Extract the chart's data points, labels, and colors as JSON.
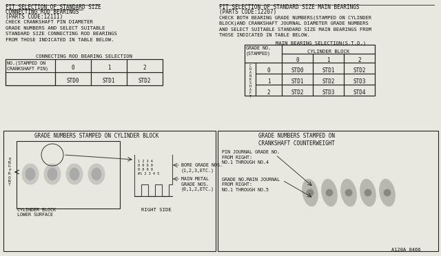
{
  "bg_color": "#e8e8e0",
  "title_left_line1": "FIT SELECTION OF STANDARD SIZE",
  "title_left_line2": "CONNECTING ROD BEARINGS",
  "title_left_line3": "(PARTS CODE:12111)",
  "desc_left": "CHECK CRANKSHAFT PIN DIAMETER\nGRADE NUMBERS AND SELECT SUITABLE\nSTANDARD SIZE CONNECTING ROD BEARINGS\nFROM THOSE INDICATED IN TABLE BELOW.",
  "table1_title": "CONNECTING ROD BEARING SELECTION",
  "table1_col_headers": [
    "0",
    "1",
    "2"
  ],
  "table1_values": [
    "STD0",
    "STD1",
    "STD2"
  ],
  "title_right_line1": "FIT SELECTION OF STANDARD SIZE MAIN BEARINGS",
  "title_right_line2": "(PARTS CODE:12207)",
  "desc_right": "CHECK BOTH BEARING GRADE NUMBERS(STAMPED ON CYLINDER\nBLOCK)AND CRANKSHAFT JOURNAL DIAMETER GRADE NUMBERS\nAND SELECT SUITABLE STANDARD SIZE MAIN BEARINGS FROM\nTHOSE INDICATED IN TABLE BELOW.",
  "table2_title": "MAIN BEARING SELECTION(S.T.D.)",
  "table2_col_headers": [
    "0",
    "1",
    "2"
  ],
  "table2_row_headers": [
    "0",
    "1",
    "2"
  ],
  "table2_values": [
    [
      "STD0",
      "STD1",
      "STD2"
    ],
    [
      "STD1",
      "STD2",
      "STD3"
    ],
    [
      "STD2",
      "STD3",
      "STD4"
    ]
  ],
  "bottom_left_title": "GRADE NUMBERS STAMPED ON CYLINDER BLOCK",
  "bottom_right_title": "GRADE NUMBERS STAMPED ON\nCRANKSHAFT COUNTERWEIGHT",
  "bore_label": "BORE GRADE NOS.\n(1,2,3,ETC.)",
  "main_metal_label": "MAIN METAL\nGRADE NOS.\n(0,1,2,ETC.)",
  "bore_nums": "1 2 3 4\n0 0 0 0\n0 0 0 0\n#1 2 3 4 5",
  "pin_journal_label": "PIN JOURNAL GRADE NO.\nFROM RIGHT:\nNO.1 THROUGH NO.4",
  "main_journal_label": "GRADE NO.MAIN JOURNAL\nFROM RIGHT:\nNO.1 THROUGH NO.5",
  "part_num": "A120A 0466",
  "engfront": "E\nN\nG\nF\nR\nO\nN\nT",
  "cyl_block_label": "CYLINDER BLOCK\nLOWER SURFACE",
  "right_side_label": "RIGHT SIDE"
}
